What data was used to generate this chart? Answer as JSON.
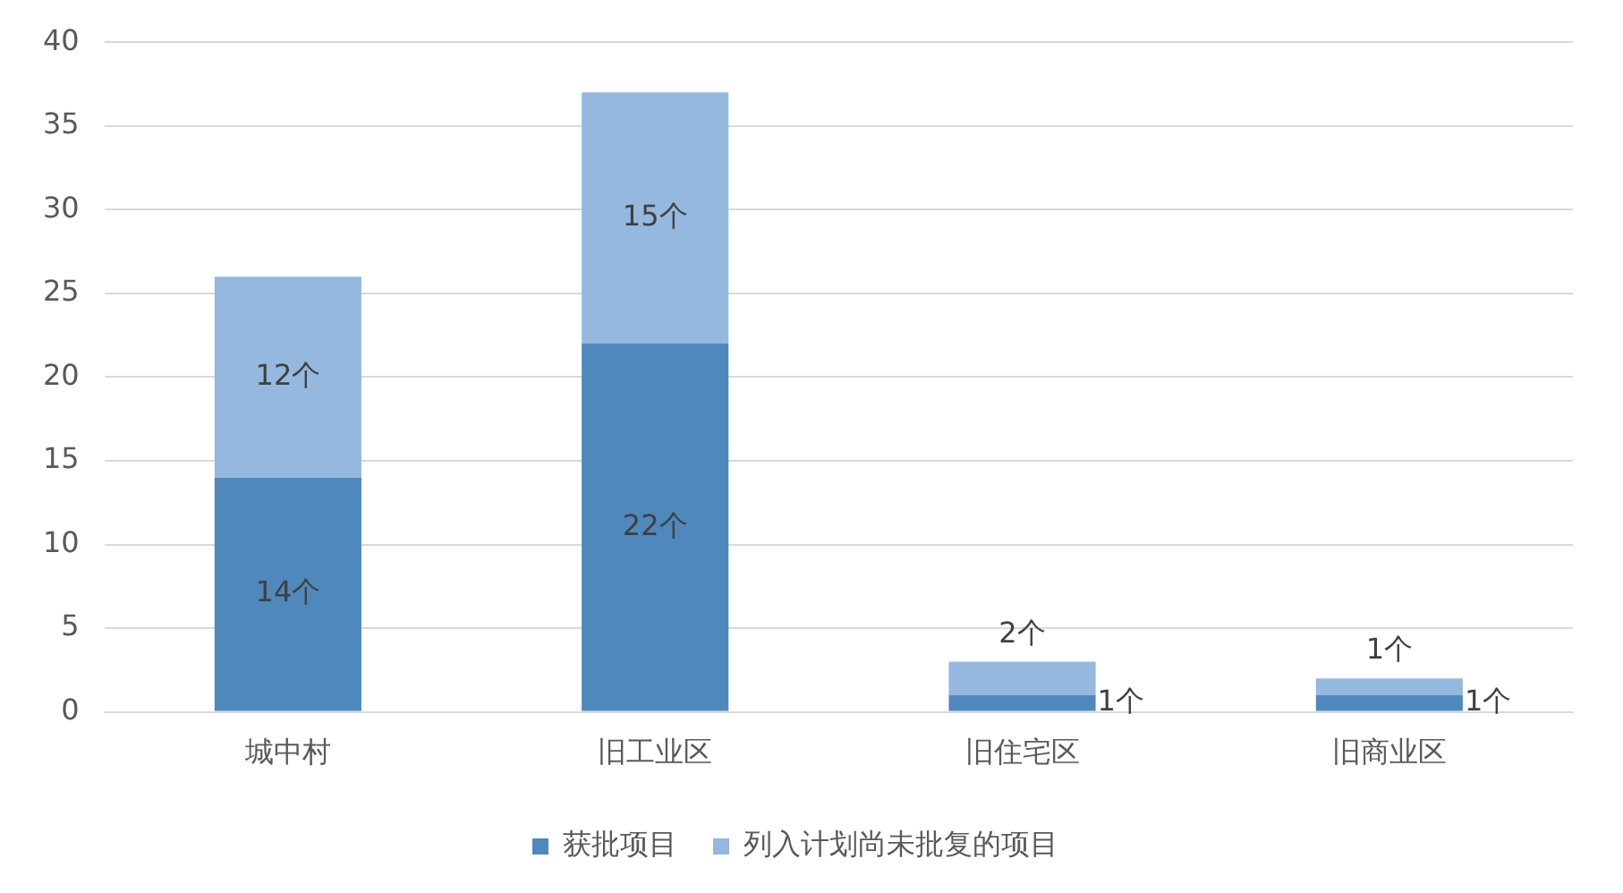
{
  "chart_data": {
    "type": "bar",
    "stacked": true,
    "categories": [
      "城中村",
      "旧工业区",
      "旧住宅区",
      "旧商业区"
    ],
    "series": [
      {
        "name": "获批项目",
        "color": "#4f88bd",
        "values": [
          14,
          22,
          1,
          1
        ],
        "value_labels": [
          "14个",
          "22个",
          "1个",
          "1个"
        ]
      },
      {
        "name": "列入计划尚未批复的项目",
        "color": "#95b8de",
        "values": [
          12,
          15,
          2,
          1
        ],
        "value_labels": [
          "12个",
          "15个",
          "2个",
          "1个"
        ]
      }
    ],
    "ylim": [
      0,
      40
    ],
    "yticks": [
      0,
      5,
      10,
      15,
      20,
      25,
      30,
      35,
      40
    ],
    "grid": "y",
    "legend": "bottom"
  }
}
